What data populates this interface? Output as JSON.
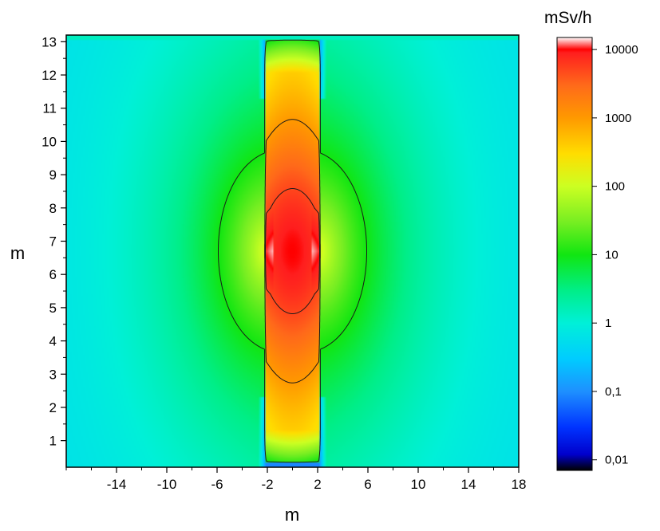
{
  "chart_data": {
    "type": "heatmap",
    "title": "",
    "xlabel": "m",
    "ylabel": "m",
    "xlim": [
      -18,
      18
    ],
    "ylim": [
      0.2,
      13.2
    ],
    "x_ticks": [
      -14,
      -10,
      -6,
      -2,
      2,
      6,
      10,
      14,
      18
    ],
    "y_ticks": [
      1,
      2,
      3,
      4,
      5,
      6,
      7,
      8,
      9,
      10,
      11,
      12,
      13
    ],
    "colorbar": {
      "title": "mSv/h",
      "scale": "log",
      "range": [
        0.007,
        15000
      ],
      "ticks": [
        {
          "value": 0.01,
          "label": "0,01"
        },
        {
          "value": 0.1,
          "label": "0,1"
        },
        {
          "value": 1,
          "label": "1"
        },
        {
          "value": 10,
          "label": "10"
        },
        {
          "value": 100,
          "label": "100"
        },
        {
          "value": 1000,
          "label": "1000"
        },
        {
          "value": 10000,
          "label": "10000"
        }
      ],
      "stops": [
        {
          "value": 0.007,
          "color": "#000000"
        },
        {
          "value": 0.012,
          "color": "#0000cc"
        },
        {
          "value": 0.03,
          "color": "#0033ff"
        },
        {
          "value": 0.1,
          "color": "#1e90ff"
        },
        {
          "value": 0.3,
          "color": "#00ccff"
        },
        {
          "value": 1,
          "color": "#00f0d8"
        },
        {
          "value": 3,
          "color": "#00ee88"
        },
        {
          "value": 10,
          "color": "#11e611"
        },
        {
          "value": 30,
          "color": "#77ee22"
        },
        {
          "value": 100,
          "color": "#ccff22"
        },
        {
          "value": 300,
          "color": "#ffdd00"
        },
        {
          "value": 1000,
          "color": "#ff9900"
        },
        {
          "value": 3000,
          "color": "#ff6a1a"
        },
        {
          "value": 9000,
          "color": "#ff1e1e"
        },
        {
          "value": 10000,
          "color": "#ff0000"
        },
        {
          "value": 15000,
          "color": "#ffffff"
        }
      ]
    },
    "contour_levels": [
      10,
      1000,
      5000
    ]
  }
}
